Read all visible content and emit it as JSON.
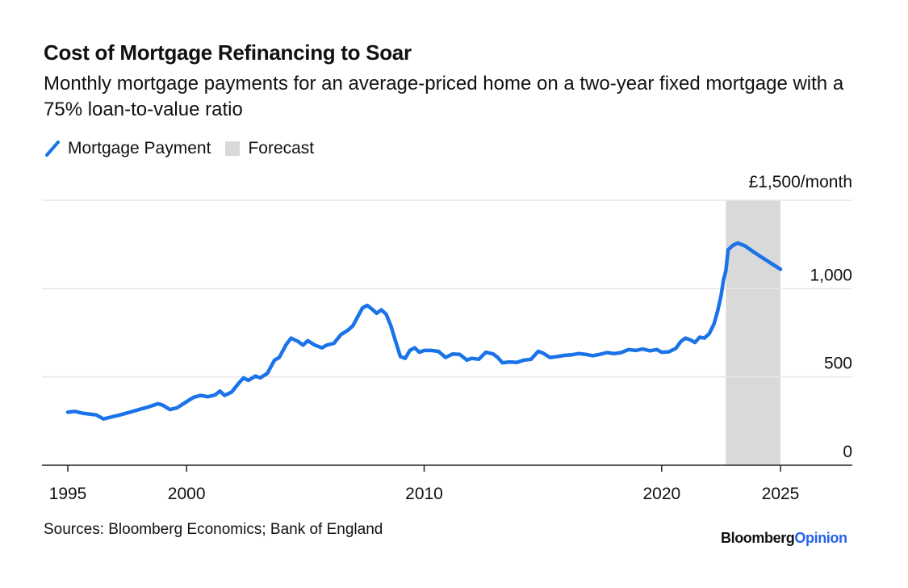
{
  "chart_data": {
    "type": "line",
    "title": "Cost of Mortgage Refinancing to Soar",
    "subtitle": "Monthly mortgage payments for an average-priced home on a two-year fixed mortgage with a 75% loan-to-value ratio",
    "legend": [
      {
        "label": "Mortgage Payment",
        "kind": "line"
      },
      {
        "label": "Forecast",
        "kind": "shaded-region"
      }
    ],
    "unit_label": "£1,500/month",
    "x_ticks": [
      "1995",
      "2000",
      "2010",
      "2020",
      "2025"
    ],
    "y_ticks": [
      "0",
      "500",
      "1,000"
    ],
    "xlim": [
      1994,
      2028
    ],
    "ylim": [
      0,
      1500
    ],
    "forecast_range": [
      2022.7,
      2025.0
    ],
    "series": [
      {
        "name": "Mortgage Payment",
        "color": "#1a73e8",
        "points": [
          [
            1995.0,
            300
          ],
          [
            1995.3,
            305
          ],
          [
            1995.6,
            295
          ],
          [
            1995.9,
            290
          ],
          [
            1996.2,
            285
          ],
          [
            1996.5,
            262
          ],
          [
            1996.8,
            272
          ],
          [
            1997.2,
            285
          ],
          [
            1997.6,
            300
          ],
          [
            1998.0,
            315
          ],
          [
            1998.4,
            330
          ],
          [
            1998.8,
            348
          ],
          [
            1999.0,
            340
          ],
          [
            1999.3,
            315
          ],
          [
            1999.6,
            325
          ],
          [
            2000.0,
            360
          ],
          [
            2000.3,
            385
          ],
          [
            2000.6,
            395
          ],
          [
            2000.9,
            388
          ],
          [
            2001.2,
            398
          ],
          [
            2001.4,
            420
          ],
          [
            2001.6,
            395
          ],
          [
            2001.9,
            415
          ],
          [
            2002.2,
            465
          ],
          [
            2002.4,
            495
          ],
          [
            2002.6,
            480
          ],
          [
            2002.9,
            505
          ],
          [
            2003.1,
            495
          ],
          [
            2003.4,
            520
          ],
          [
            2003.7,
            595
          ],
          [
            2003.9,
            610
          ],
          [
            2004.2,
            685
          ],
          [
            2004.4,
            720
          ],
          [
            2004.7,
            700
          ],
          [
            2004.9,
            680
          ],
          [
            2005.1,
            705
          ],
          [
            2005.4,
            680
          ],
          [
            2005.7,
            665
          ],
          [
            2005.9,
            680
          ],
          [
            2006.2,
            690
          ],
          [
            2006.5,
            740
          ],
          [
            2006.8,
            765
          ],
          [
            2007.0,
            790
          ],
          [
            2007.2,
            840
          ],
          [
            2007.4,
            890
          ],
          [
            2007.6,
            905
          ],
          [
            2007.8,
            885
          ],
          [
            2008.0,
            860
          ],
          [
            2008.2,
            880
          ],
          [
            2008.4,
            855
          ],
          [
            2008.6,
            790
          ],
          [
            2008.8,
            700
          ],
          [
            2009.0,
            615
          ],
          [
            2009.2,
            605
          ],
          [
            2009.4,
            650
          ],
          [
            2009.6,
            665
          ],
          [
            2009.8,
            640
          ],
          [
            2010.0,
            650
          ],
          [
            2010.3,
            650
          ],
          [
            2010.6,
            645
          ],
          [
            2010.9,
            610
          ],
          [
            2011.2,
            630
          ],
          [
            2011.5,
            628
          ],
          [
            2011.8,
            595
          ],
          [
            2012.0,
            605
          ],
          [
            2012.3,
            600
          ],
          [
            2012.6,
            640
          ],
          [
            2012.9,
            630
          ],
          [
            2013.1,
            610
          ],
          [
            2013.3,
            580
          ],
          [
            2013.6,
            585
          ],
          [
            2013.9,
            582
          ],
          [
            2014.2,
            595
          ],
          [
            2014.5,
            600
          ],
          [
            2014.8,
            645
          ],
          [
            2015.0,
            635
          ],
          [
            2015.3,
            610
          ],
          [
            2015.6,
            615
          ],
          [
            2015.9,
            622
          ],
          [
            2016.2,
            625
          ],
          [
            2016.5,
            632
          ],
          [
            2016.8,
            628
          ],
          [
            2017.1,
            620
          ],
          [
            2017.4,
            628
          ],
          [
            2017.7,
            638
          ],
          [
            2018.0,
            632
          ],
          [
            2018.3,
            638
          ],
          [
            2018.6,
            655
          ],
          [
            2018.9,
            650
          ],
          [
            2019.2,
            658
          ],
          [
            2019.5,
            648
          ],
          [
            2019.8,
            655
          ],
          [
            2020.0,
            640
          ],
          [
            2020.3,
            642
          ],
          [
            2020.6,
            662
          ],
          [
            2020.8,
            700
          ],
          [
            2021.0,
            720
          ],
          [
            2021.2,
            710
          ],
          [
            2021.4,
            695
          ],
          [
            2021.6,
            725
          ],
          [
            2021.8,
            720
          ],
          [
            2022.0,
            745
          ],
          [
            2022.2,
            800
          ],
          [
            2022.35,
            870
          ],
          [
            2022.5,
            960
          ],
          [
            2022.6,
            1050
          ],
          [
            2022.7,
            1100
          ],
          [
            2022.8,
            1220
          ],
          [
            2023.0,
            1245
          ],
          [
            2023.2,
            1258
          ],
          [
            2023.5,
            1242
          ],
          [
            2023.9,
            1205
          ],
          [
            2024.3,
            1170
          ],
          [
            2024.7,
            1135
          ],
          [
            2025.0,
            1110
          ]
        ]
      }
    ]
  },
  "source": "Sources: Bloomberg Economics; Bank of England",
  "brand": {
    "part1": "Bloomberg",
    "part2": "Opinion"
  }
}
